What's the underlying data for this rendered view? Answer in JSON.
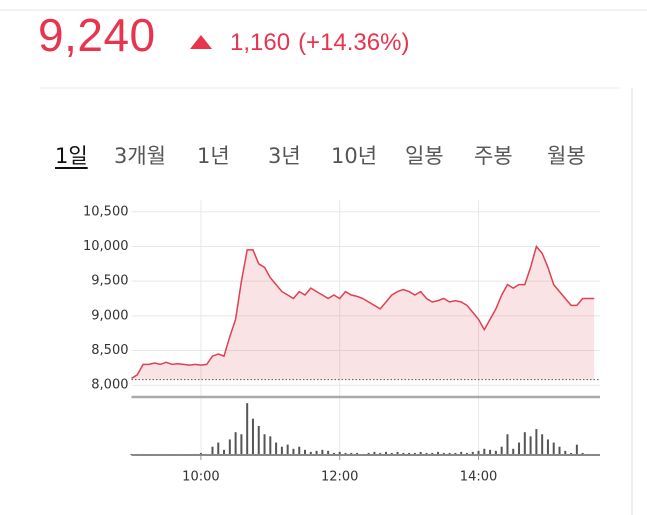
{
  "header": {
    "price": "9,240",
    "change": "1,160",
    "change_pct": "(+14.36%)"
  },
  "tabs": [
    "1일",
    "3개월",
    "1년",
    "3년",
    "10년",
    "일봉",
    "주봉",
    "월봉"
  ],
  "active_tab": 0,
  "chart_data": {
    "type": "line",
    "x": [
      "09:00",
      "09:05",
      "09:10",
      "09:15",
      "09:20",
      "09:25",
      "09:30",
      "09:35",
      "09:40",
      "09:45",
      "09:50",
      "09:55",
      "10:00",
      "10:05",
      "10:10",
      "10:15",
      "10:20",
      "10:25",
      "10:30",
      "10:35",
      "10:40",
      "10:45",
      "10:50",
      "10:55",
      "11:00",
      "11:05",
      "11:10",
      "11:15",
      "11:20",
      "11:25",
      "11:30",
      "11:35",
      "11:40",
      "11:45",
      "11:50",
      "11:55",
      "12:00",
      "12:05",
      "12:10",
      "12:15",
      "12:20",
      "12:25",
      "12:30",
      "12:35",
      "12:40",
      "12:45",
      "12:50",
      "12:55",
      "13:00",
      "13:05",
      "13:10",
      "13:15",
      "13:20",
      "13:25",
      "13:30",
      "13:35",
      "13:40",
      "13:45",
      "13:50",
      "13:55",
      "14:00",
      "14:05",
      "14:10",
      "14:15",
      "14:20",
      "14:25",
      "14:30",
      "14:35",
      "14:40",
      "14:45",
      "14:50",
      "14:55",
      "15:00",
      "15:05",
      "15:10",
      "15:15",
      "15:20",
      "15:25",
      "15:30",
      "15:35",
      "15:40"
    ],
    "series": [
      {
        "name": "price",
        "color": "#e04050",
        "values": [
          8100,
          8150,
          8300,
          8300,
          8320,
          8300,
          8330,
          8300,
          8310,
          8300,
          8290,
          8300,
          8290,
          8300,
          8420,
          8450,
          8420,
          8700,
          8950,
          9500,
          9950,
          9950,
          9750,
          9700,
          9550,
          9450,
          9350,
          9300,
          9250,
          9350,
          9300,
          9400,
          9350,
          9300,
          9250,
          9300,
          9250,
          9350,
          9300,
          9280,
          9250,
          9200,
          9150,
          9100,
          9200,
          9300,
          9350,
          9380,
          9350,
          9300,
          9350,
          9250,
          9200,
          9220,
          9250,
          9200,
          9220,
          9200,
          9150,
          9050,
          8950,
          8800,
          8950,
          9100,
          9300,
          9450,
          9400,
          9450,
          9450,
          9700,
          10000,
          9900,
          9700,
          9450,
          9350,
          9250,
          9150,
          9150,
          9250,
          9250,
          9250
        ]
      },
      {
        "name": "volume",
        "color": "#555555",
        "axis": "y2",
        "values": [
          1,
          1,
          1,
          0,
          1,
          0,
          1,
          0,
          0,
          1,
          0,
          1,
          2,
          1,
          8,
          12,
          5,
          15,
          22,
          20,
          50,
          35,
          28,
          20,
          18,
          12,
          8,
          10,
          6,
          8,
          5,
          3,
          4,
          5,
          4,
          2,
          3,
          2,
          2,
          2,
          1,
          2,
          3,
          2,
          3,
          2,
          3,
          2,
          2,
          2,
          3,
          2,
          2,
          3,
          2,
          2,
          2,
          3,
          2,
          3,
          4,
          6,
          5,
          4,
          8,
          20,
          6,
          12,
          22,
          18,
          25,
          20,
          15,
          12,
          8,
          4,
          2,
          10,
          2,
          1,
          1
        ]
      }
    ],
    "reference": 8080,
    "xlim": [
      "09:00",
      "15:45"
    ],
    "xticks": [
      "10:00",
      "12:00",
      "14:00"
    ],
    "ylim": [
      7830,
      10670
    ],
    "yticks": [
      {
        "value": 8000,
        "label": "8,000"
      },
      {
        "value": 8500,
        "label": "8,500"
      },
      {
        "value": 9000,
        "label": "9,000"
      },
      {
        "value": 9500,
        "label": "9,500"
      },
      {
        "value": 10000,
        "label": "10,000"
      },
      {
        "value": 10500,
        "label": "10,500"
      }
    ],
    "y2lim": [
      0,
      55
    ],
    "grid": true
  }
}
